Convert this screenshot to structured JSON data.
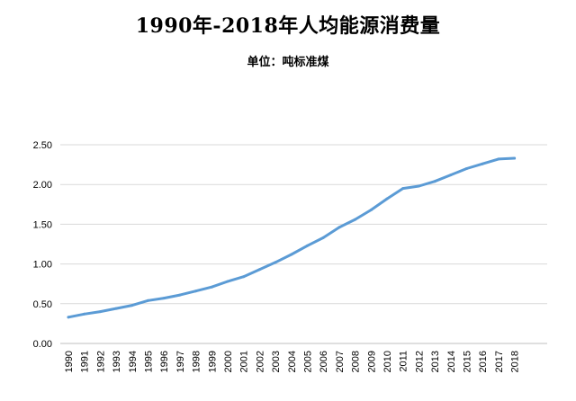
{
  "chart_data": {
    "type": "line",
    "title": "1990年-2018年人均能源消费量",
    "subtitle": "单位：吨标准煤",
    "xlabel": "",
    "ylabel": "",
    "categories": [
      "1990",
      "1991",
      "1992",
      "1993",
      "1994",
      "1995",
      "1996",
      "1997",
      "1998",
      "1999",
      "2000",
      "2001",
      "2002",
      "2003",
      "2004",
      "2005",
      "2006",
      "2007",
      "2008",
      "2009",
      "2010",
      "2011",
      "2012",
      "2013",
      "2014",
      "2015",
      "2016",
      "2017",
      "2018"
    ],
    "series": [
      {
        "values": [
          0.33,
          0.37,
          0.4,
          0.44,
          0.48,
          0.54,
          0.57,
          0.61,
          0.66,
          0.71,
          0.78,
          0.84,
          0.93,
          1.02,
          1.12,
          1.23,
          1.33,
          1.46,
          1.56,
          1.68,
          1.82,
          1.95,
          1.98,
          2.04,
          2.12,
          2.2,
          2.26,
          2.32,
          2.33
        ],
        "color": "#5b9bd5"
      }
    ],
    "ylim": [
      0,
      2.5
    ],
    "yticks": [
      "0.00",
      "0.50",
      "1.00",
      "1.50",
      "2.00",
      "2.50"
    ],
    "grid": true,
    "legend": "none"
  }
}
